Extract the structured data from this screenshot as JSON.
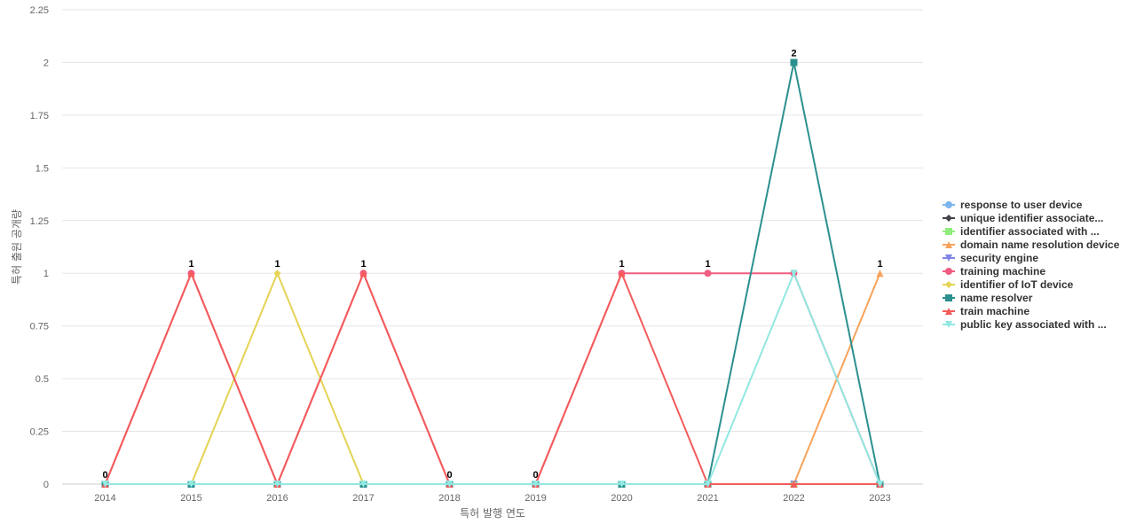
{
  "chart_data": {
    "type": "line",
    "title": "",
    "xlabel": "특허 발행 연도",
    "ylabel": "특허 출원 공개량",
    "x": [
      "2014",
      "2015",
      "2016",
      "2017",
      "2018",
      "2019",
      "2020",
      "2021",
      "2022",
      "2023"
    ],
    "ylim": [
      0,
      2.25
    ],
    "yticks": [
      "0",
      "0.25",
      "0.5",
      "0.75",
      "1",
      "1.25",
      "1.5",
      "1.75",
      "2",
      "2.25"
    ],
    "grid": "horizontal",
    "legend_position": "right",
    "series": [
      {
        "name": "response to user device",
        "color": "#7cb5ec",
        "marker": "circle",
        "values": [
          0,
          0,
          0,
          0,
          0,
          0,
          0,
          0,
          0,
          0
        ]
      },
      {
        "name": "unique identifier associate...",
        "color": "#434348",
        "marker": "diamond",
        "values": [
          0,
          0,
          0,
          0,
          0,
          0,
          0,
          0,
          0,
          0
        ]
      },
      {
        "name": "identifier associated with ...",
        "color": "#90ed7d",
        "marker": "square",
        "values": [
          0,
          0,
          0,
          0,
          0,
          0,
          0,
          0,
          0,
          0
        ]
      },
      {
        "name": "domain name resolution device",
        "color": "#f7a35c",
        "marker": "triangle",
        "values": [
          0,
          0,
          0,
          0,
          0,
          0,
          0,
          0,
          0,
          1
        ]
      },
      {
        "name": "security engine",
        "color": "#8085e9",
        "marker": "triangle-down",
        "values": [
          0,
          0,
          0,
          0,
          0,
          0,
          0,
          0,
          0,
          0
        ]
      },
      {
        "name": "training machine",
        "color": "#f15c80",
        "marker": "circle",
        "values": [
          0,
          1,
          0,
          1,
          0,
          0,
          1,
          1,
          1,
          0
        ]
      },
      {
        "name": "identifier of IoT device",
        "color": "#e4d354",
        "marker": "diamond",
        "values": [
          0,
          0,
          1,
          0,
          0,
          0,
          0,
          0,
          0,
          0
        ]
      },
      {
        "name": "name resolver",
        "color": "#2b908f",
        "marker": "square",
        "values": [
          0,
          0,
          0,
          0,
          0,
          0,
          0,
          0,
          2,
          0
        ]
      },
      {
        "name": "train machine",
        "color": "#f45b5b",
        "marker": "triangle",
        "values": [
          0,
          1,
          0,
          1,
          0,
          0,
          1,
          0,
          0,
          0
        ]
      },
      {
        "name": "public key associated with ...",
        "color": "#91e8e1",
        "marker": "triangle-down",
        "values": [
          0,
          0,
          0,
          0,
          0,
          0,
          0,
          0,
          1,
          0
        ]
      }
    ],
    "data_labels": [
      "0",
      "1",
      "1",
      "1",
      "0",
      "0",
      "1",
      "1",
      "2",
      "1"
    ]
  }
}
